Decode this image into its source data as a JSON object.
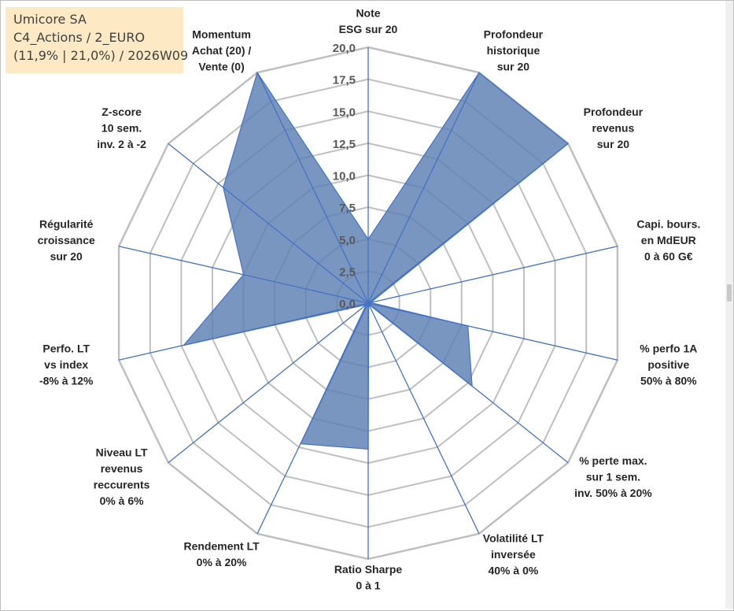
{
  "info": {
    "line1": "Umicore SA",
    "line2": "C4_Actions / 2_EURO",
    "line3": "(11,9% | 21,0%) / 2026W09"
  },
  "colors": {
    "fill": "#5b7fb3",
    "line": "#4472c4",
    "grid": "#bfbfbf",
    "info_bg": "#fde9c4"
  },
  "chart_data": {
    "type": "radar",
    "title": "",
    "rmin": 0,
    "rmax": 20,
    "grid": true,
    "legend": "none",
    "tick_labels": [
      "0,0",
      "2,5",
      "5,0",
      "7,5",
      "10,0",
      "12,5",
      "15,0",
      "17,5",
      "20,0"
    ],
    "categories": [
      [
        "Note",
        "ESG sur 20"
      ],
      [
        "Profondeur",
        "historique",
        "sur 20"
      ],
      [
        "Profondeur",
        "revenus",
        "sur 20"
      ],
      [
        "Capi. bours.",
        "en MdEUR",
        "0 à 60 G€"
      ],
      [
        "% perfo 1A",
        "positive",
        "50% à 80%"
      ],
      [
        "% perte max.",
        "sur 1 sem.",
        "inv. 50% à 20%"
      ],
      [
        "Volatilité LT",
        "inversée",
        "40% à 0%"
      ],
      [
        "Ratio Sharpe",
        "0 à 1"
      ],
      [
        "Rendement LT",
        "0% à 20%"
      ],
      [
        "Niveau LT",
        "revenus",
        "reccurents",
        "0% à 6%"
      ],
      [
        "Perfo. LT",
        "vs index",
        "-8% à 12%"
      ],
      [
        "Régularité",
        "croissance",
        "sur 20"
      ],
      [
        "Z-score",
        "10 sem.",
        "inv. 2 à -2"
      ],
      [
        "Momentum",
        "Achat (20) /",
        "Vente (0)"
      ]
    ],
    "series": [
      {
        "values": [
          5.0,
          20.0,
          20.0,
          0.2,
          8.0,
          10.4,
          0.1,
          11.4,
          12.2,
          0.2,
          14.8,
          10.0,
          14.5,
          20.0
        ]
      }
    ]
  }
}
